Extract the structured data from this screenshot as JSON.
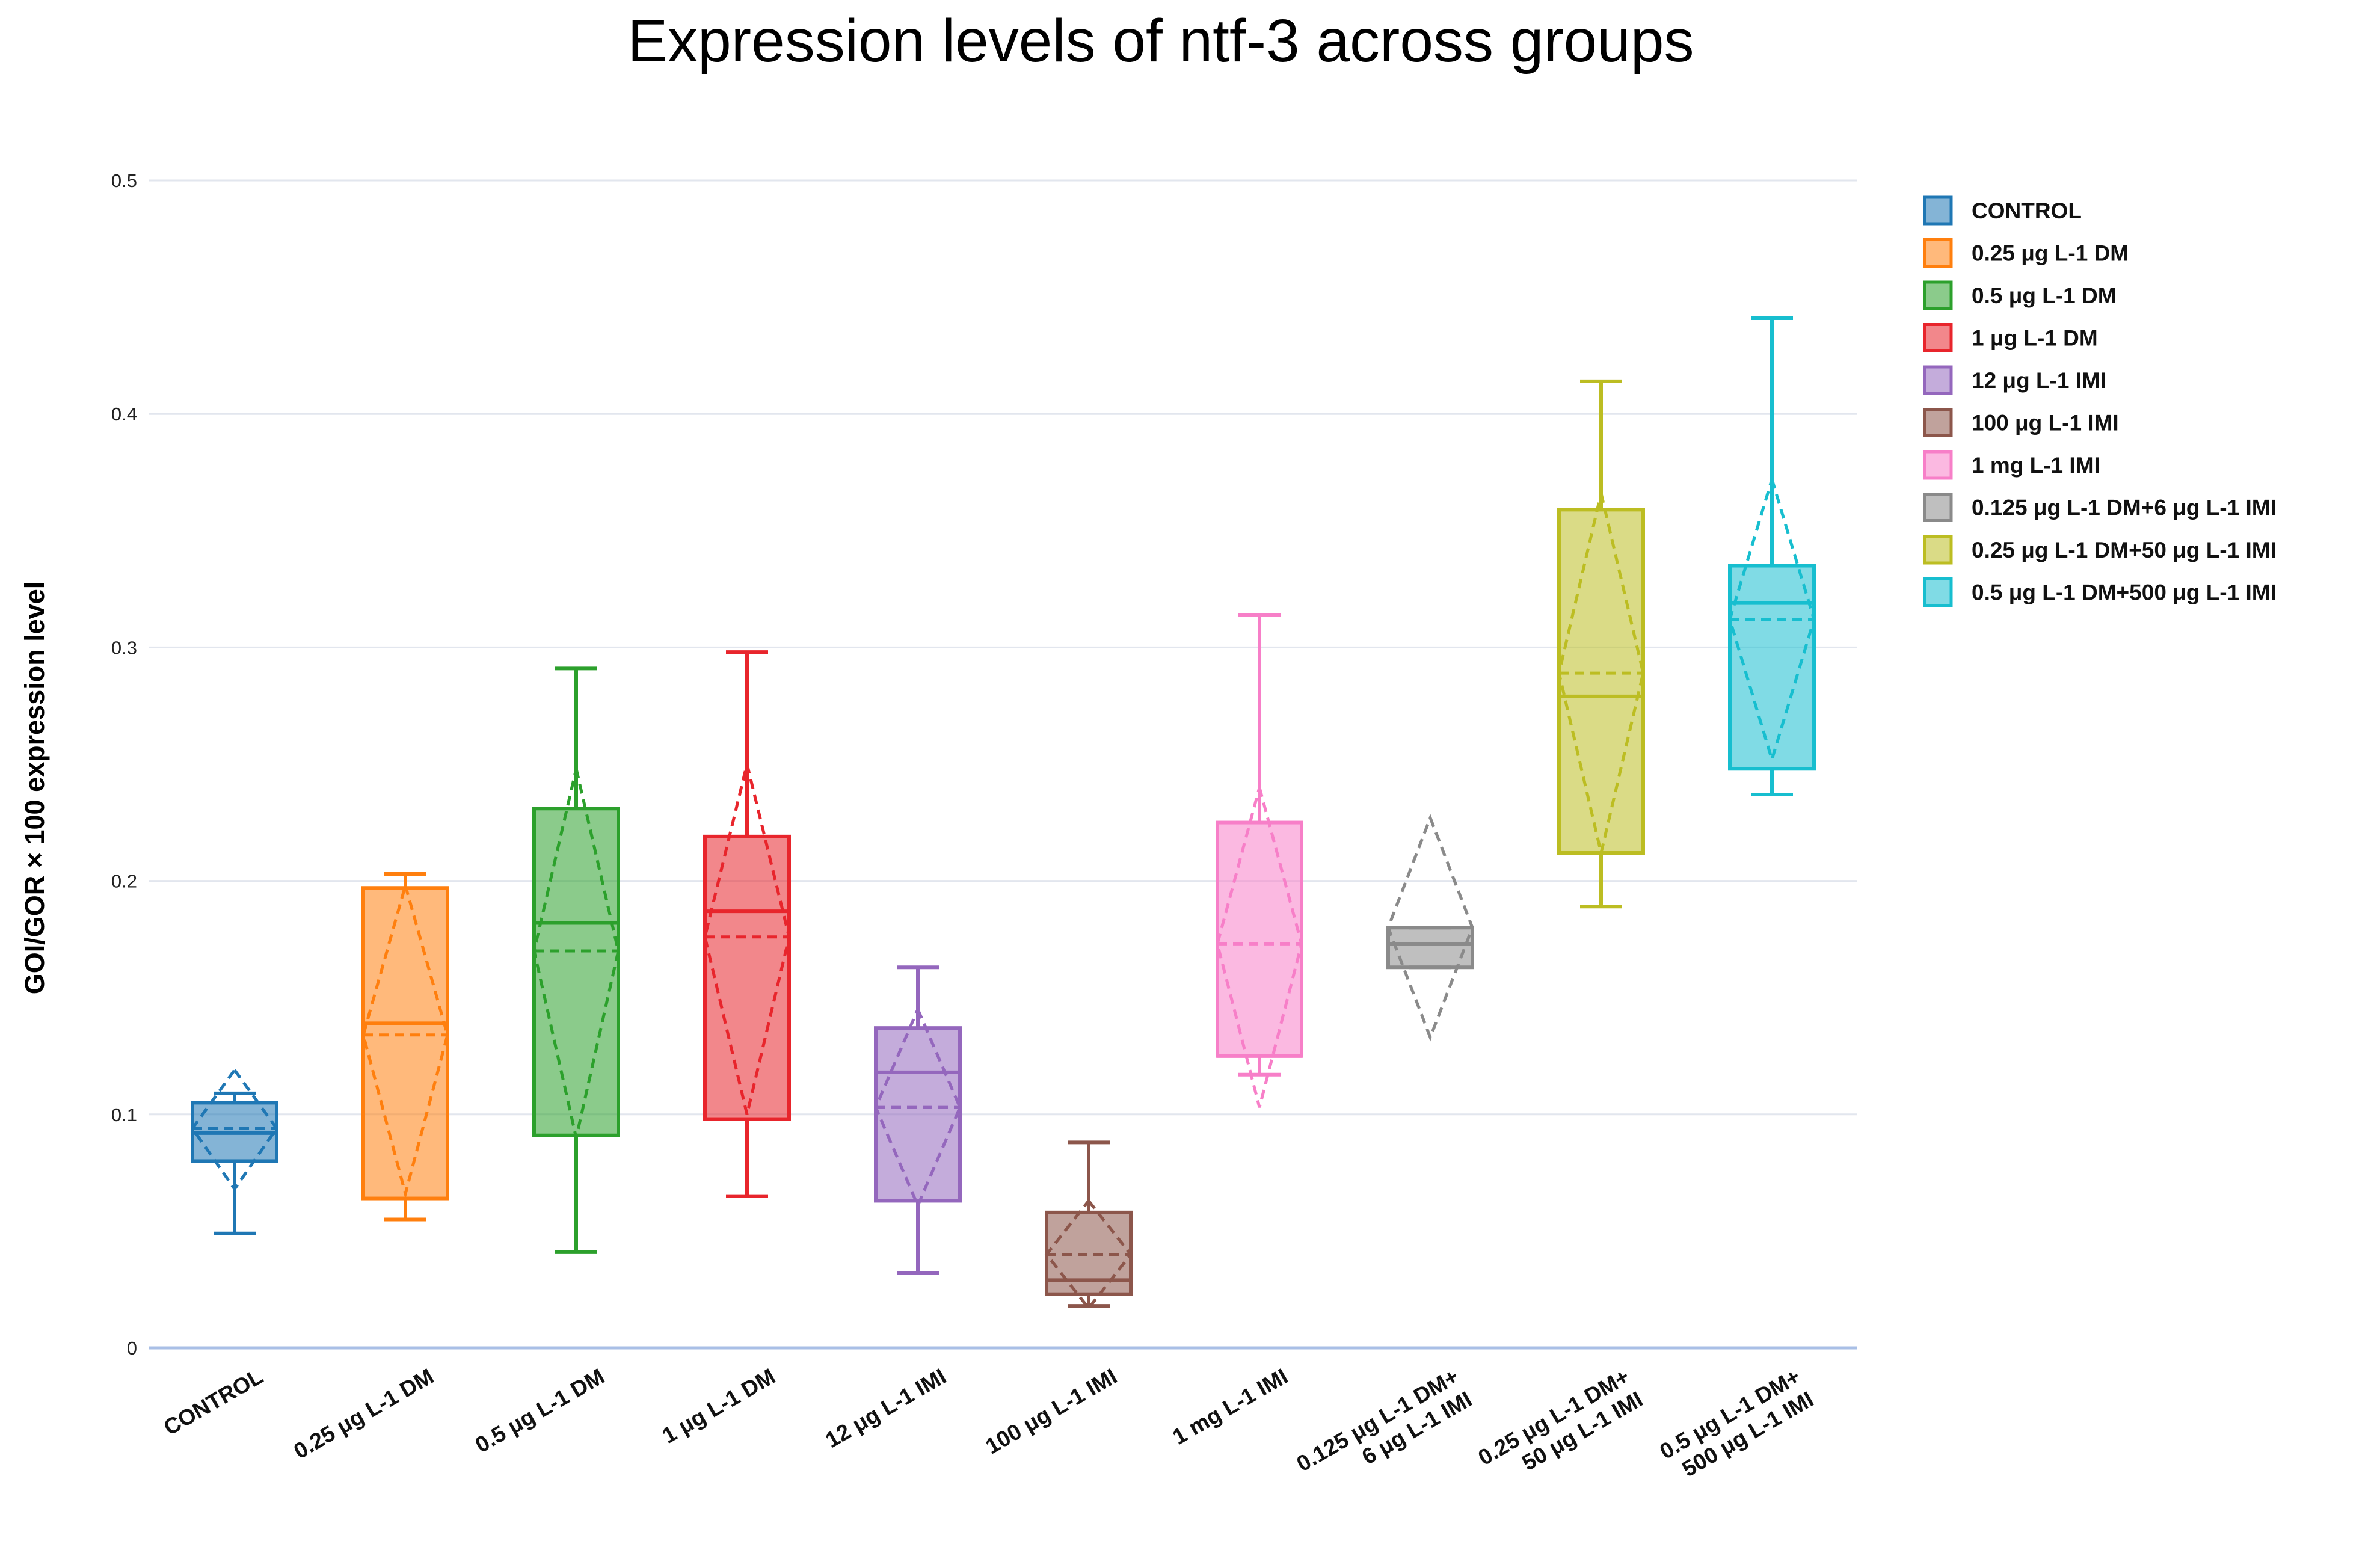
{
  "chart_data": {
    "type": "box",
    "title": "Expression levels of ntf-3 across groups",
    "xlabel": "",
    "ylabel": "GOI/GOR × 100 expression level",
    "ylim": [
      0,
      0.5
    ],
    "yticks": [
      "0",
      "0.1",
      "0.2",
      "0.3",
      "0.4",
      "0.5"
    ],
    "ytick_values": [
      0,
      0.1,
      0.2,
      0.3,
      0.4,
      0.5
    ],
    "grid": true,
    "legend_position": "right",
    "groups": [
      {
        "name": "CONTROL",
        "xlabel": [
          "CONTROL"
        ],
        "color": "#1f77b4",
        "whisker_low": 0.049,
        "q1": 0.08,
        "median": 0.092,
        "q3": 0.105,
        "whisker_high": 0.109,
        "mean": 0.094,
        "mean_low": 0.068,
        "mean_high": 0.119
      },
      {
        "name": "0.25 μg L-1 DM",
        "xlabel": [
          "0.25 μg L-1 DM"
        ],
        "color": "#ff7f0e",
        "whisker_low": 0.055,
        "q1": 0.064,
        "median": 0.139,
        "q3": 0.197,
        "whisker_high": 0.203,
        "mean": 0.134,
        "mean_low": 0.066,
        "mean_high": 0.198
      },
      {
        "name": "0.5 μg L-1 DM",
        "xlabel": [
          "0.5 μg L-1 DM"
        ],
        "color": "#2ca02c",
        "whisker_low": 0.041,
        "q1": 0.091,
        "median": 0.182,
        "q3": 0.231,
        "whisker_high": 0.291,
        "mean": 0.17,
        "mean_low": 0.09,
        "mean_high": 0.248
      },
      {
        "name": "1 μg L-1 DM",
        "xlabel": [
          "1 μg L-1 DM"
        ],
        "color": "#e8252c",
        "whisker_low": 0.065,
        "q1": 0.098,
        "median": 0.187,
        "q3": 0.219,
        "whisker_high": 0.298,
        "mean": 0.176,
        "mean_low": 0.1,
        "mean_high": 0.25
      },
      {
        "name": "12 μg L-1 IMI",
        "xlabel": [
          "12 μg L-1 IMI"
        ],
        "color": "#9467bd",
        "whisker_low": 0.032,
        "q1": 0.063,
        "median": 0.118,
        "q3": 0.137,
        "whisker_high": 0.163,
        "mean": 0.103,
        "mean_low": 0.061,
        "mean_high": 0.145
      },
      {
        "name": "100 μg L-1 IMI",
        "xlabel": [
          "100 μg L-1 IMI"
        ],
        "color": "#8c564b",
        "whisker_low": 0.018,
        "q1": 0.023,
        "median": 0.029,
        "q3": 0.058,
        "whisker_high": 0.088,
        "mean": 0.04,
        "mean_low": 0.017,
        "mean_high": 0.063
      },
      {
        "name": "1 mg L-1 IMI",
        "xlabel": [
          "1 mg L-1 IMI"
        ],
        "color": "#f77fc8",
        "whisker_low": 0.117,
        "q1": 0.125,
        "median": 0.125,
        "q3": 0.225,
        "whisker_high": 0.314,
        "mean": 0.173,
        "mean_low": 0.103,
        "mean_high": 0.24
      },
      {
        "name": "0.125 μg L-1 DM+6 μg L-1 IMI",
        "xlabel": [
          "0.125 μg L-1 DM+",
          "6 μg L-1 IMI"
        ],
        "color": "#8a8a8a",
        "whisker_low": 0.163,
        "q1": 0.163,
        "median": 0.173,
        "q3": 0.18,
        "whisker_high": 0.18,
        "mean": 0.18,
        "mean_low": 0.133,
        "mean_high": 0.227
      },
      {
        "name": "0.25 μg L-1 DM+50 μg L-1 IMI",
        "xlabel": [
          "0.25 μg L-1 DM+",
          "50 μg L-1 IMI"
        ],
        "color": "#bcbd22",
        "whisker_low": 0.189,
        "q1": 0.212,
        "median": 0.279,
        "q3": 0.359,
        "whisker_high": 0.414,
        "mean": 0.289,
        "mean_low": 0.212,
        "mean_high": 0.366
      },
      {
        "name": "0.5 μg L-1 DM+500 μg L-1 IMI",
        "xlabel": [
          "0.5 μg L-1 DM+",
          "500 μg L-1 IMI"
        ],
        "color": "#17becf",
        "whisker_low": 0.237,
        "q1": 0.248,
        "median": 0.319,
        "q3": 0.335,
        "whisker_high": 0.441,
        "mean": 0.312,
        "mean_low": 0.252,
        "mean_high": 0.372
      }
    ]
  }
}
